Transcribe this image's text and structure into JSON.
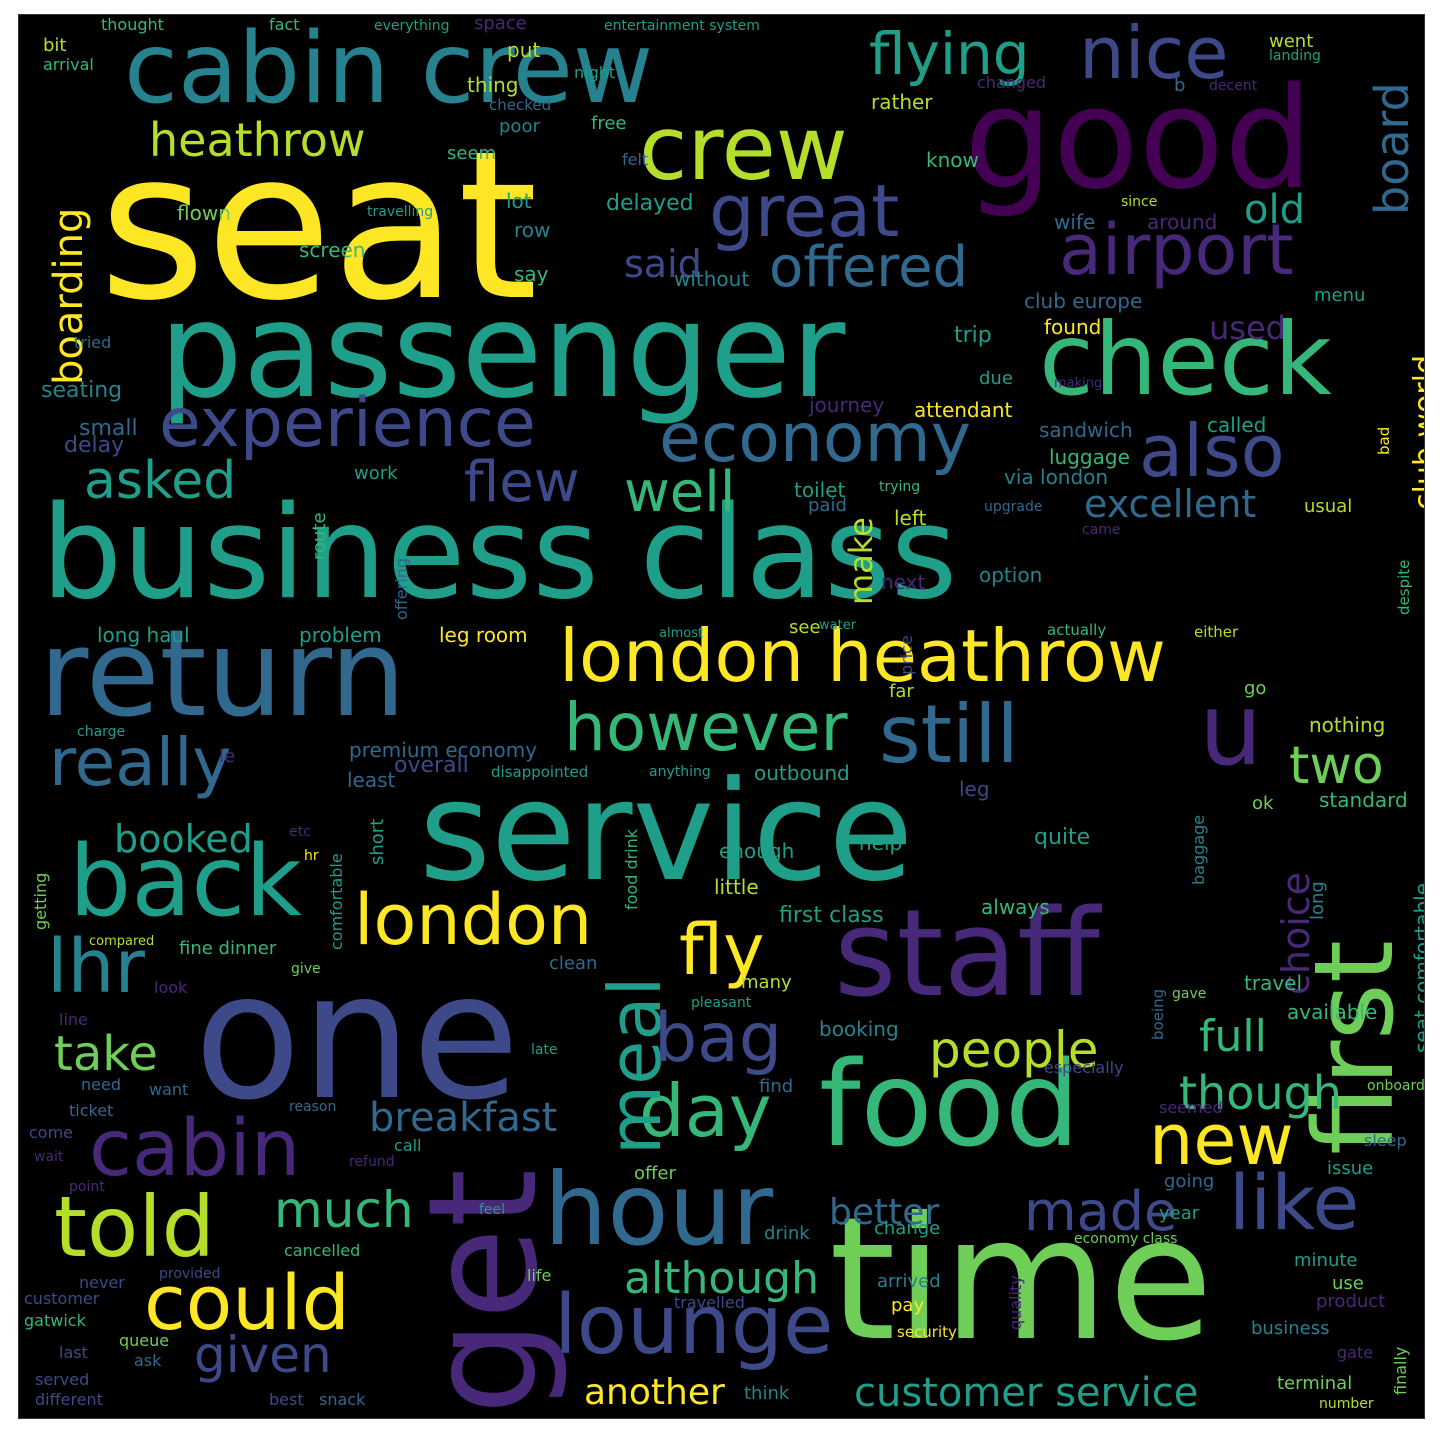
{
  "words": [
    {
      "key": "seat",
      "text": "seat"
    },
    {
      "key": "passenger",
      "text": "passenger"
    },
    {
      "key": "business_class",
      "text": "business class"
    },
    {
      "key": "service",
      "text": "service"
    },
    {
      "key": "time",
      "text": "time"
    },
    {
      "key": "one",
      "text": "one"
    },
    {
      "key": "good",
      "text": "good"
    },
    {
      "key": "cabin_crew",
      "text": "cabin crew"
    },
    {
      "key": "return",
      "text": "return"
    },
    {
      "key": "food",
      "text": "food"
    },
    {
      "key": "staff",
      "text": "staff"
    },
    {
      "key": "get",
      "text": "get"
    },
    {
      "key": "first",
      "text": "first"
    },
    {
      "key": "check",
      "text": "check"
    },
    {
      "key": "london_heathrow",
      "text": "london heathrow"
    },
    {
      "key": "back",
      "text": "back"
    },
    {
      "key": "crew",
      "text": "crew"
    },
    {
      "key": "hour",
      "text": "hour"
    },
    {
      "key": "lounge",
      "text": "lounge"
    },
    {
      "key": "cabin",
      "text": "cabin"
    },
    {
      "key": "u",
      "text": "u"
    },
    {
      "key": "experience",
      "text": "experience"
    },
    {
      "key": "economy",
      "text": "economy"
    },
    {
      "key": "airport",
      "text": "airport"
    },
    {
      "key": "nice",
      "text": "nice"
    },
    {
      "key": "flying",
      "text": "flying"
    },
    {
      "key": "great",
      "text": "great"
    },
    {
      "key": "however",
      "text": "however"
    },
    {
      "key": "still",
      "text": "still"
    },
    {
      "key": "london",
      "text": "london"
    },
    {
      "key": "told",
      "text": "told"
    },
    {
      "key": "could",
      "text": "could"
    },
    {
      "key": "also",
      "text": "also"
    },
    {
      "key": "really",
      "text": "really"
    },
    {
      "key": "heathrow",
      "text": "heathrow"
    },
    {
      "key": "offered",
      "text": "offered"
    },
    {
      "key": "like",
      "text": "like"
    },
    {
      "key": "new",
      "text": "new"
    },
    {
      "key": "day",
      "text": "day"
    },
    {
      "key": "meal",
      "text": "meal"
    },
    {
      "key": "bag",
      "text": "bag"
    },
    {
      "key": "fly",
      "text": "fly"
    },
    {
      "key": "lhr",
      "text": "lhr"
    },
    {
      "key": "take",
      "text": "take"
    },
    {
      "key": "given",
      "text": "given"
    },
    {
      "key": "much",
      "text": "much"
    },
    {
      "key": "made",
      "text": "made"
    },
    {
      "key": "although",
      "text": "although"
    },
    {
      "key": "customer_service",
      "text": "customer service"
    },
    {
      "key": "flew",
      "text": "flew"
    },
    {
      "key": "well",
      "text": "well"
    },
    {
      "key": "asked",
      "text": "asked"
    },
    {
      "key": "two",
      "text": "two"
    },
    {
      "key": "people",
      "text": "people"
    },
    {
      "key": "though",
      "text": "though"
    },
    {
      "key": "full",
      "text": "full"
    },
    {
      "key": "boarding",
      "text": "boarding"
    },
    {
      "key": "board",
      "text": "board"
    },
    {
      "key": "old",
      "text": "old"
    },
    {
      "key": "excellent",
      "text": "excellent"
    },
    {
      "key": "club_world",
      "text": "club world"
    },
    {
      "key": "breakfast",
      "text": "breakfast"
    },
    {
      "key": "booked",
      "text": "booked"
    },
    {
      "key": "another",
      "text": "another"
    },
    {
      "key": "better",
      "text": "better"
    },
    {
      "key": "choice",
      "text": "choice"
    },
    {
      "key": "said",
      "text": "said"
    },
    {
      "key": "make",
      "text": "make"
    },
    {
      "key": "delayed",
      "text": "delayed"
    },
    {
      "key": "used",
      "text": "used"
    },
    {
      "key": "seat_comfortable",
      "text": "seat comfortable"
    },
    {
      "key": "premium_economy",
      "text": "premium economy"
    },
    {
      "key": "first_class",
      "text": "first class"
    },
    {
      "key": "seating",
      "text": "seating"
    },
    {
      "key": "small",
      "text": "small"
    },
    {
      "key": "delay",
      "text": "delay"
    },
    {
      "key": "leg_room",
      "text": "leg room"
    },
    {
      "key": "problem",
      "text": "problem"
    },
    {
      "key": "long_haul",
      "text": "long haul"
    },
    {
      "key": "least",
      "text": "least"
    },
    {
      "key": "overall",
      "text": "overall"
    },
    {
      "key": "outbound",
      "text": "outbound"
    },
    {
      "key": "leg",
      "text": "leg"
    },
    {
      "key": "quite",
      "text": "quite"
    },
    {
      "key": "standard",
      "text": "standard"
    },
    {
      "key": "help",
      "text": "help"
    },
    {
      "key": "enough",
      "text": "enough"
    },
    {
      "key": "little",
      "text": "little"
    },
    {
      "key": "always",
      "text": "always"
    },
    {
      "key": "travel",
      "text": "travel"
    },
    {
      "key": "available",
      "text": "available"
    },
    {
      "key": "booking",
      "text": "booking"
    },
    {
      "key": "nothing",
      "text": "nothing"
    },
    {
      "key": "upgrade",
      "text": "upgrade"
    },
    {
      "key": "option",
      "text": "option"
    },
    {
      "key": "next",
      "text": "next"
    },
    {
      "key": "left",
      "text": "left"
    },
    {
      "key": "paid",
      "text": "paid"
    },
    {
      "key": "toilet",
      "text": "toilet"
    },
    {
      "key": "via_london",
      "text": "via london"
    },
    {
      "key": "luggage",
      "text": "luggage"
    },
    {
      "key": "sandwich",
      "text": "sandwich"
    },
    {
      "key": "called",
      "text": "called"
    },
    {
      "key": "attendant",
      "text": "attendant"
    },
    {
      "key": "due",
      "text": "due"
    },
    {
      "key": "journey",
      "text": "journey"
    },
    {
      "key": "trip",
      "text": "trip"
    },
    {
      "key": "found",
      "text": "found"
    },
    {
      "key": "club_europe",
      "text": "club europe"
    },
    {
      "key": "menu",
      "text": "menu"
    },
    {
      "key": "without",
      "text": "without"
    },
    {
      "key": "screen",
      "text": "screen"
    },
    {
      "key": "say",
      "text": "say"
    },
    {
      "key": "row",
      "text": "row"
    },
    {
      "key": "lot",
      "text": "lot"
    },
    {
      "key": "flown",
      "text": "flown"
    },
    {
      "key": "travelling",
      "text": "travelling"
    },
    {
      "key": "seem",
      "text": "seem"
    },
    {
      "key": "poor",
      "text": "poor"
    },
    {
      "key": "free",
      "text": "free"
    },
    {
      "key": "felt",
      "text": "felt"
    },
    {
      "key": "know",
      "text": "know"
    },
    {
      "key": "rather",
      "text": "rather"
    },
    {
      "key": "wife",
      "text": "wife"
    },
    {
      "key": "around",
      "text": "around"
    },
    {
      "key": "since",
      "text": "since"
    },
    {
      "key": "thing",
      "text": "thing"
    },
    {
      "key": "put",
      "text": "put"
    },
    {
      "key": "night",
      "text": "night"
    },
    {
      "key": "went",
      "text": "went"
    },
    {
      "key": "landing",
      "text": "landing"
    },
    {
      "key": "changed",
      "text": "changed"
    },
    {
      "key": "decent",
      "text": "decent"
    },
    {
      "key": "checked",
      "text": "checked"
    },
    {
      "key": "bit",
      "text": "bit"
    },
    {
      "key": "arrival",
      "text": "arrival"
    },
    {
      "key": "thought",
      "text": "thought"
    },
    {
      "key": "fact",
      "text": "fact"
    },
    {
      "key": "space",
      "text": "space"
    },
    {
      "key": "everything",
      "text": "everything"
    },
    {
      "key": "entertainment_system",
      "text": "entertainment system"
    },
    {
      "key": "tried",
      "text": "tried"
    },
    {
      "key": "work",
      "text": "work"
    },
    {
      "key": "route",
      "text": "route"
    },
    {
      "key": "offering",
      "text": "offering"
    },
    {
      "key": "see",
      "text": "see"
    },
    {
      "key": "price",
      "text": "price"
    },
    {
      "key": "far",
      "text": "far"
    },
    {
      "key": "go",
      "text": "go"
    },
    {
      "key": "actually",
      "text": "actually"
    },
    {
      "key": "either",
      "text": "either"
    },
    {
      "key": "usual",
      "text": "usual"
    },
    {
      "key": "despite",
      "text": "despite"
    },
    {
      "key": "came",
      "text": "came"
    },
    {
      "key": "bad",
      "text": "bad"
    },
    {
      "key": "ok",
      "text": "ok"
    },
    {
      "key": "baggage",
      "text": "baggage"
    },
    {
      "key": "long",
      "text": "long"
    },
    {
      "key": "short",
      "text": "short"
    },
    {
      "key": "comfortable",
      "text": "comfortable"
    },
    {
      "key": "hr",
      "text": "hr"
    },
    {
      "key": "food_drink",
      "text": "food drink"
    },
    {
      "key": "getting",
      "text": "getting"
    },
    {
      "key": "fine_dinner",
      "text": "fine dinner"
    },
    {
      "key": "give",
      "text": "give"
    },
    {
      "key": "many",
      "text": "many"
    },
    {
      "key": "pleasant",
      "text": "pleasant"
    },
    {
      "key": "clean",
      "text": "clean"
    },
    {
      "key": "look",
      "text": "look"
    },
    {
      "key": "line",
      "text": "line"
    },
    {
      "key": "need",
      "text": "need"
    },
    {
      "key": "want",
      "text": "want"
    },
    {
      "key": "ticket",
      "text": "ticket"
    },
    {
      "key": "come",
      "text": "come"
    },
    {
      "key": "wait",
      "text": "wait"
    },
    {
      "key": "point",
      "text": "point"
    },
    {
      "key": "never",
      "text": "never"
    },
    {
      "key": "customer",
      "text": "customer"
    },
    {
      "key": "gatwick",
      "text": "gatwick"
    },
    {
      "key": "queue",
      "text": "queue"
    },
    {
      "key": "ask",
      "text": "ask"
    },
    {
      "key": "last",
      "text": "last"
    },
    {
      "key": "served",
      "text": "served"
    },
    {
      "key": "different",
      "text": "different"
    },
    {
      "key": "best",
      "text": "best"
    },
    {
      "key": "snack",
      "text": "snack"
    },
    {
      "key": "cancelled",
      "text": "cancelled"
    },
    {
      "key": "provided",
      "text": "provided"
    },
    {
      "key": "call",
      "text": "call"
    },
    {
      "key": "refund",
      "text": "refund"
    },
    {
      "key": "offer",
      "text": "offer"
    },
    {
      "key": "feel",
      "text": "feel"
    },
    {
      "key": "find",
      "text": "find"
    },
    {
      "key": "reason",
      "text": "reason"
    },
    {
      "key": "drink",
      "text": "drink"
    },
    {
      "key": "change",
      "text": "change"
    },
    {
      "key": "going",
      "text": "going"
    },
    {
      "key": "year",
      "text": "year"
    },
    {
      "key": "issue",
      "text": "issue"
    },
    {
      "key": "sleep",
      "text": "sleep"
    },
    {
      "key": "seemed",
      "text": "seemed"
    },
    {
      "key": "onboard",
      "text": "onboard"
    },
    {
      "key": "minute",
      "text": "minute"
    },
    {
      "key": "use",
      "text": "use"
    },
    {
      "key": "product",
      "text": "product"
    },
    {
      "key": "business",
      "text": "business"
    },
    {
      "key": "gate",
      "text": "gate"
    },
    {
      "key": "terminal",
      "text": "terminal"
    },
    {
      "key": "number",
      "text": "number"
    },
    {
      "key": "finally",
      "text": "finally"
    },
    {
      "key": "arrived",
      "text": "arrived"
    },
    {
      "key": "pay",
      "text": "pay"
    },
    {
      "key": "security",
      "text": "security"
    },
    {
      "key": "economy_class",
      "text": "economy class"
    },
    {
      "key": "life",
      "text": "life"
    },
    {
      "key": "travelled",
      "text": "travelled"
    },
    {
      "key": "think",
      "text": "think"
    },
    {
      "key": "late",
      "text": "late"
    },
    {
      "key": "especially",
      "text": "especially"
    },
    {
      "key": "boeing",
      "text": "boeing"
    },
    {
      "key": "gave",
      "text": "gave"
    },
    {
      "key": "quality",
      "text": "quality"
    },
    {
      "key": "compared",
      "text": "compared"
    },
    {
      "key": "water",
      "text": "water"
    },
    {
      "key": "almost",
      "text": "almost"
    },
    {
      "key": "disappointed",
      "text": "disappointed"
    },
    {
      "key": "anything",
      "text": "anything"
    },
    {
      "key": "charge",
      "text": "charge"
    },
    {
      "key": "b",
      "text": "b"
    },
    {
      "key": "le",
      "text": "le"
    },
    {
      "key": "etc",
      "text": "etc"
    },
    {
      "key": "making",
      "text": "making"
    },
    {
      "key": "trying",
      "text": "trying"
    }
  ]
}
